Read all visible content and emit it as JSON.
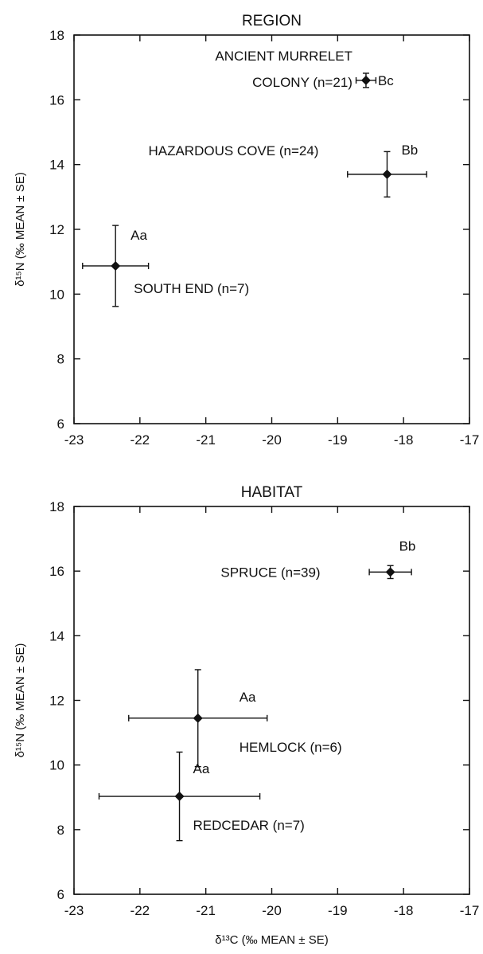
{
  "chart_data": [
    {
      "type": "scatter",
      "title": "REGION",
      "ylabel": "δ¹⁵N (‰ MEAN ± SE)",
      "xlabel": "",
      "xlim": [
        -23,
        -17
      ],
      "ylim": [
        6,
        18
      ],
      "x_ticks": [
        "-23",
        "-22",
        "-21",
        "-20",
        "-19",
        "-18",
        "-17"
      ],
      "y_ticks": [
        "6",
        "8",
        "10",
        "12",
        "14",
        "16",
        "18"
      ],
      "points": [
        {
          "label_lines": [
            "ANCIENT MURRELET",
            "COLONY (n=21)"
          ],
          "x": -18.57,
          "y": 16.6,
          "x_err": 0.15,
          "y_err": 0.22,
          "letters": "Bc"
        },
        {
          "label_lines": [
            "HAZARDOUS COVE (n=24)"
          ],
          "x": -18.25,
          "y": 13.7,
          "x_err": 0.6,
          "y_err": 0.7,
          "letters": "Bb"
        },
        {
          "label_lines": [
            "SOUTH END (n=7)"
          ],
          "x": -22.37,
          "y": 10.87,
          "x_err": 0.5,
          "y_err": 1.25,
          "letters": "Aa"
        }
      ]
    },
    {
      "type": "scatter",
      "title": "HABITAT",
      "ylabel": "δ¹⁵N (‰ MEAN ± SE)",
      "xlabel": "δ¹³C (‰ MEAN ± SE)",
      "xlim": [
        -23,
        -17
      ],
      "ylim": [
        6,
        18
      ],
      "x_ticks": [
        "-23",
        "-22",
        "-21",
        "-20",
        "-19",
        "-18",
        "-17"
      ],
      "y_ticks": [
        "6",
        "8",
        "10",
        "12",
        "14",
        "16",
        "18"
      ],
      "points": [
        {
          "label_lines": [
            "SPRUCE (n=39)"
          ],
          "x": -18.2,
          "y": 15.97,
          "x_err": 0.32,
          "y_err": 0.2,
          "letters": "Bb"
        },
        {
          "label_lines": [
            "HEMLOCK (n=6)"
          ],
          "x": -21.12,
          "y": 11.45,
          "x_err": 1.05,
          "y_err": 1.5,
          "letters": "Aa"
        },
        {
          "label_lines": [
            "REDCEDAR (n=7)"
          ],
          "x": -21.4,
          "y": 9.03,
          "x_err": 1.22,
          "y_err": 1.37,
          "letters": "Aa"
        }
      ]
    }
  ]
}
